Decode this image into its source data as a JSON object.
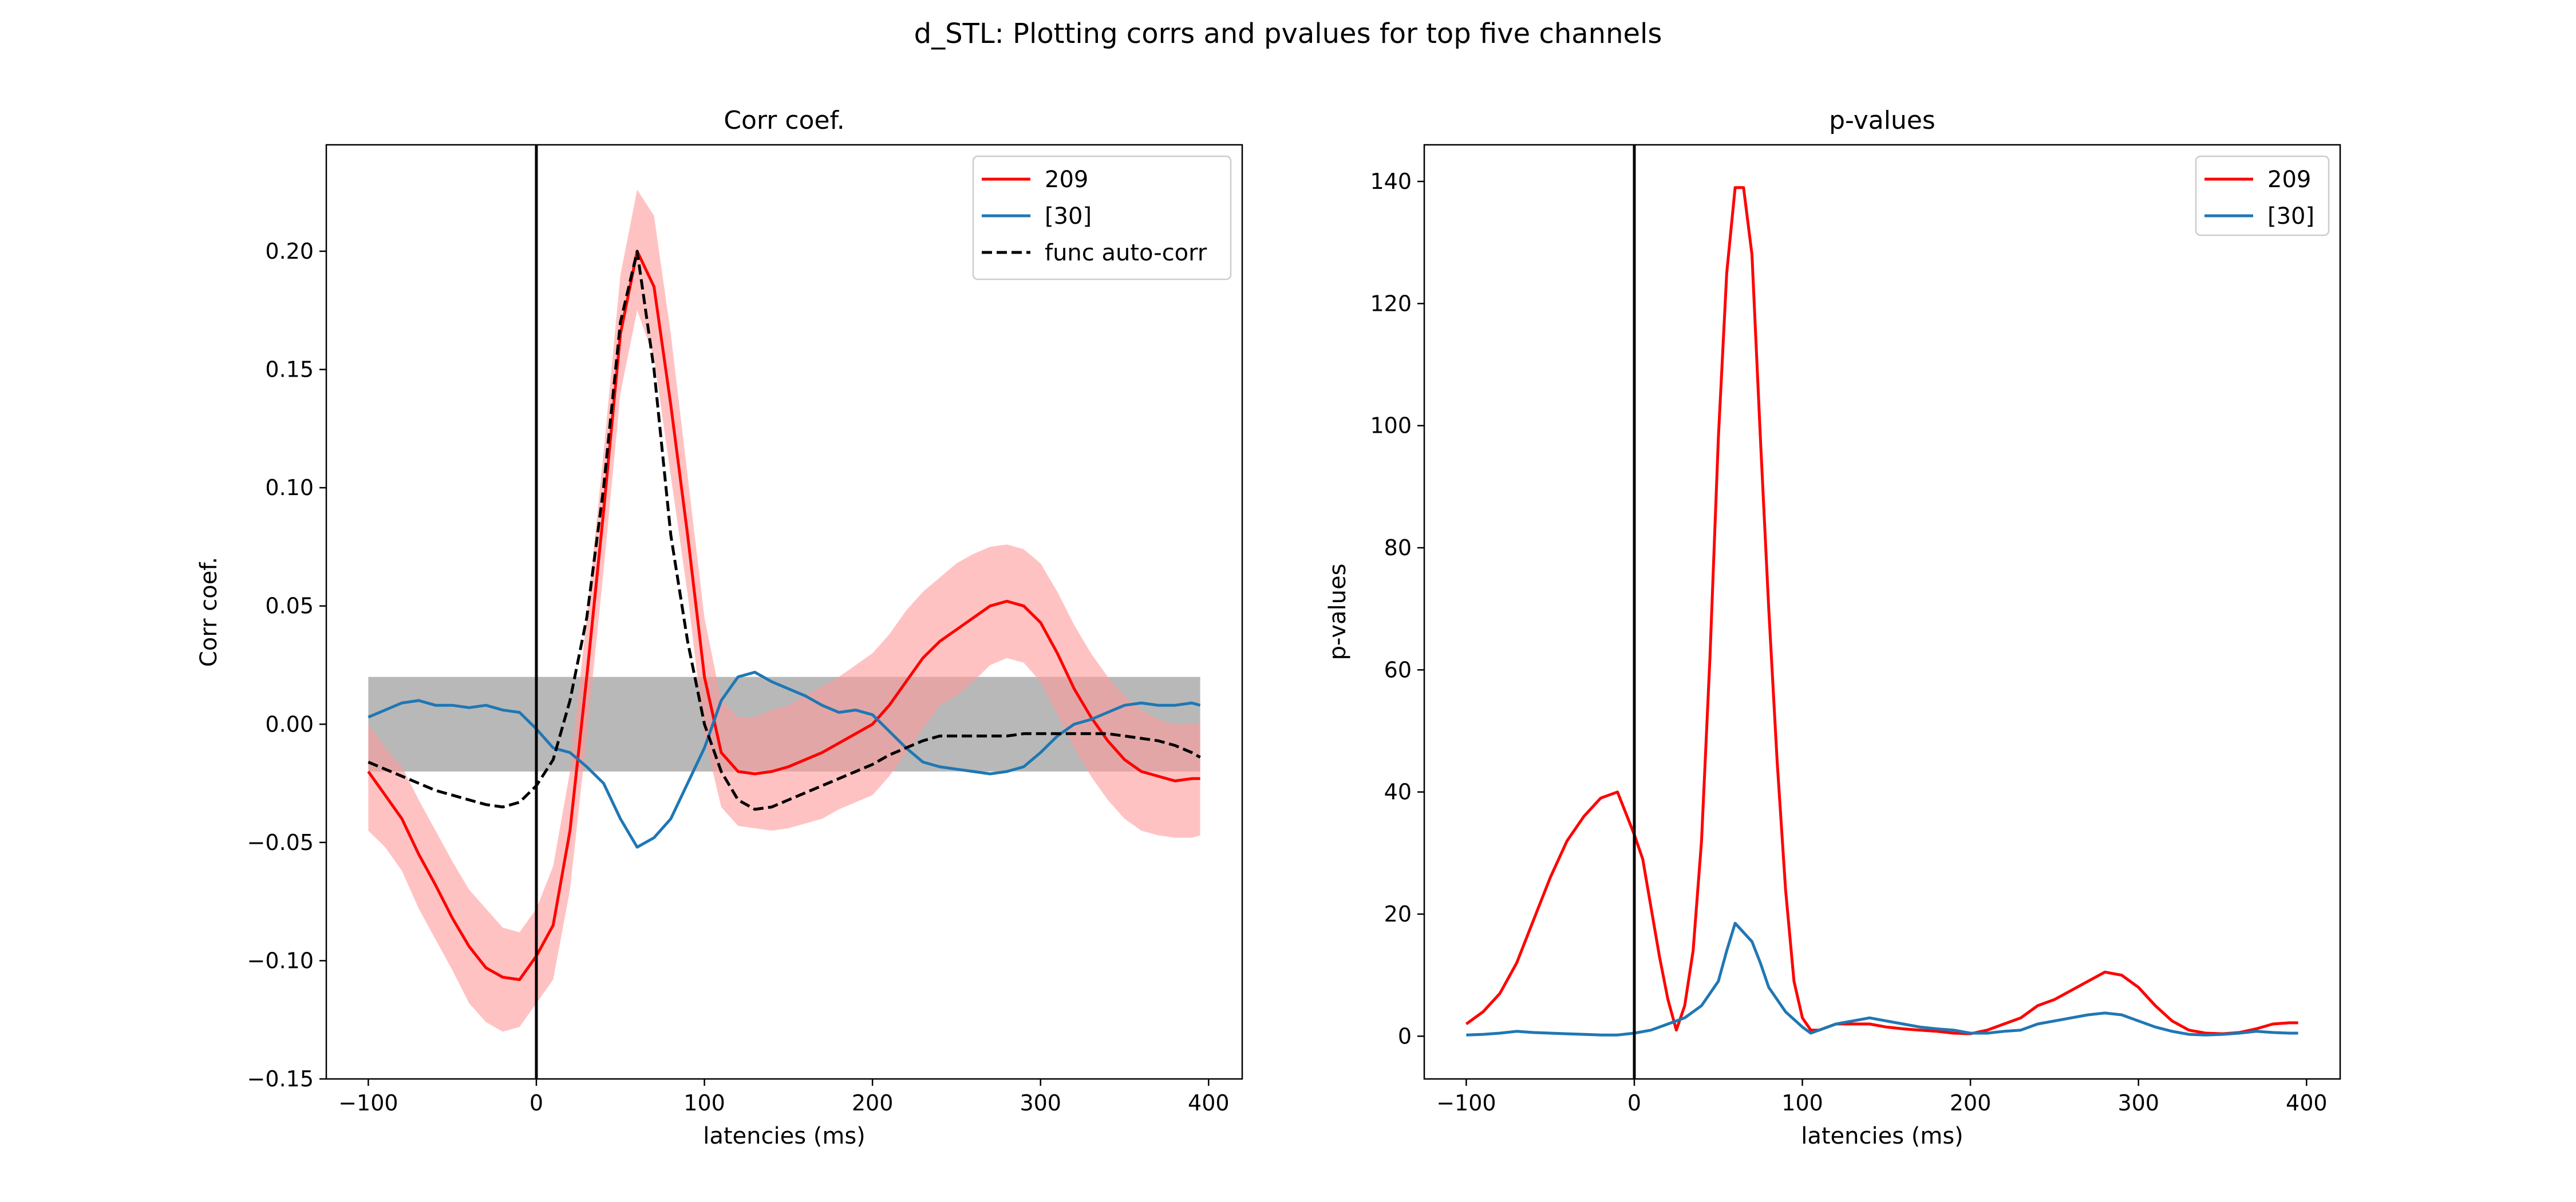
{
  "suptitle": "d_STL: Plotting corrs and pvalues for top five channels",
  "colors": {
    "red": "#ff0000",
    "blue": "#1f77b4",
    "black": "#000000",
    "band_red": "#ff9a9a",
    "band_gray": "#a0a0a0"
  },
  "chart_data": [
    {
      "type": "line",
      "title": "Corr coef.",
      "xlabel": "latencies (ms)",
      "ylabel": "Corr coef.",
      "xlim": [
        -125,
        420
      ],
      "ylim": [
        -0.15,
        0.245
      ],
      "xticks": [
        -100,
        0,
        100,
        200,
        300,
        400
      ],
      "xtick_labels": [
        "−100",
        "0",
        "100",
        "200",
        "300",
        "400"
      ],
      "yticks": [
        -0.15,
        -0.1,
        -0.05,
        0.0,
        0.05,
        0.1,
        0.15,
        0.2
      ],
      "ytick_labels": [
        "−0.15",
        "−0.10",
        "−0.05",
        "0.00",
        "0.05",
        "0.10",
        "0.15",
        "0.20"
      ],
      "vline_x": 0,
      "grid": false,
      "legend_position": "top-right",
      "gray_band": {
        "x": [
          -100,
          395
        ],
        "y": [
          -0.02,
          0.02
        ]
      },
      "series": [
        {
          "name": "209",
          "color": "#ff0000",
          "style": "solid",
          "x": [
            -100,
            -90,
            -80,
            -70,
            -60,
            -50,
            -40,
            -30,
            -20,
            -10,
            0,
            10,
            20,
            30,
            40,
            50,
            60,
            70,
            80,
            90,
            100,
            110,
            120,
            130,
            140,
            150,
            160,
            170,
            180,
            190,
            200,
            210,
            220,
            230,
            240,
            250,
            260,
            270,
            280,
            290,
            300,
            310,
            320,
            330,
            340,
            350,
            360,
            370,
            380,
            390,
            395
          ],
          "y": [
            -0.02,
            -0.03,
            -0.04,
            -0.055,
            -0.068,
            -0.082,
            -0.094,
            -0.103,
            -0.107,
            -0.108,
            -0.098,
            -0.085,
            -0.045,
            0.02,
            0.09,
            0.165,
            0.2,
            0.185,
            0.135,
            0.08,
            0.02,
            -0.012,
            -0.02,
            -0.021,
            -0.02,
            -0.018,
            -0.015,
            -0.012,
            -0.008,
            -0.004,
            0.0,
            0.008,
            0.018,
            0.028,
            0.035,
            0.04,
            0.045,
            0.05,
            0.052,
            0.05,
            0.043,
            0.03,
            0.015,
            0.003,
            -0.007,
            -0.015,
            -0.02,
            -0.022,
            -0.024,
            -0.023,
            -0.023
          ]
        },
        {
          "name": "[30]",
          "color": "#1f77b4",
          "style": "solid",
          "x": [
            -100,
            -90,
            -80,
            -70,
            -60,
            -50,
            -40,
            -30,
            -20,
            -10,
            0,
            10,
            20,
            30,
            40,
            50,
            60,
            70,
            80,
            90,
            100,
            110,
            120,
            130,
            140,
            150,
            160,
            170,
            180,
            190,
            200,
            210,
            220,
            230,
            240,
            250,
            260,
            270,
            280,
            290,
            300,
            310,
            320,
            330,
            340,
            350,
            360,
            370,
            380,
            390,
            395
          ],
          "y": [
            0.003,
            0.006,
            0.009,
            0.01,
            0.008,
            0.008,
            0.007,
            0.008,
            0.006,
            0.005,
            -0.002,
            -0.01,
            -0.012,
            -0.018,
            -0.025,
            -0.04,
            -0.052,
            -0.048,
            -0.04,
            -0.025,
            -0.01,
            0.01,
            0.02,
            0.022,
            0.018,
            0.015,
            0.012,
            0.008,
            0.005,
            0.006,
            0.004,
            -0.003,
            -0.01,
            -0.016,
            -0.018,
            -0.019,
            -0.02,
            -0.021,
            -0.02,
            -0.018,
            -0.012,
            -0.005,
            0.0,
            0.002,
            0.005,
            0.008,
            0.009,
            0.008,
            0.008,
            0.009,
            0.008
          ]
        },
        {
          "name": "func auto-corr",
          "color": "#000000",
          "style": "dashed",
          "x": [
            -100,
            -90,
            -80,
            -70,
            -60,
            -50,
            -40,
            -30,
            -20,
            -10,
            0,
            10,
            20,
            30,
            40,
            50,
            60,
            70,
            80,
            90,
            100,
            110,
            120,
            130,
            140,
            150,
            160,
            170,
            180,
            190,
            200,
            210,
            220,
            230,
            240,
            250,
            260,
            270,
            280,
            290,
            300,
            310,
            320,
            330,
            340,
            350,
            360,
            370,
            380,
            390,
            395
          ],
          "y": [
            -0.016,
            -0.019,
            -0.022,
            -0.025,
            -0.028,
            -0.03,
            -0.032,
            -0.034,
            -0.035,
            -0.033,
            -0.026,
            -0.015,
            0.01,
            0.045,
            0.1,
            0.17,
            0.2,
            0.15,
            0.08,
            0.035,
            0.0,
            -0.02,
            -0.032,
            -0.036,
            -0.035,
            -0.032,
            -0.029,
            -0.026,
            -0.023,
            -0.02,
            -0.017,
            -0.013,
            -0.01,
            -0.007,
            -0.005,
            -0.005,
            -0.005,
            -0.005,
            -0.005,
            -0.004,
            -0.004,
            -0.004,
            -0.004,
            -0.004,
            -0.004,
            -0.005,
            -0.006,
            -0.007,
            -0.009,
            -0.012,
            -0.014
          ]
        }
      ],
      "error_band": {
        "series": "209",
        "x": [
          -100,
          -90,
          -80,
          -70,
          -60,
          -50,
          -40,
          -30,
          -20,
          -10,
          0,
          10,
          20,
          30,
          40,
          50,
          60,
          70,
          80,
          90,
          100,
          110,
          120,
          130,
          140,
          150,
          160,
          170,
          180,
          190,
          200,
          210,
          220,
          230,
          240,
          250,
          260,
          270,
          280,
          290,
          300,
          310,
          320,
          330,
          340,
          350,
          360,
          370,
          380,
          390,
          395
        ],
        "upper": [
          0.0,
          -0.01,
          -0.018,
          -0.032,
          -0.045,
          -0.058,
          -0.07,
          -0.078,
          -0.086,
          -0.088,
          -0.078,
          -0.06,
          -0.02,
          0.045,
          0.115,
          0.19,
          0.226,
          0.215,
          0.165,
          0.105,
          0.045,
          0.01,
          0.003,
          0.003,
          0.006,
          0.008,
          0.012,
          0.016,
          0.02,
          0.025,
          0.03,
          0.038,
          0.048,
          0.056,
          0.062,
          0.068,
          0.072,
          0.075,
          0.076,
          0.074,
          0.068,
          0.056,
          0.042,
          0.03,
          0.02,
          0.012,
          0.006,
          0.002,
          0.0,
          0.0,
          0.0
        ],
        "lower": [
          -0.045,
          -0.052,
          -0.062,
          -0.078,
          -0.091,
          -0.104,
          -0.118,
          -0.126,
          -0.13,
          -0.128,
          -0.118,
          -0.108,
          -0.07,
          -0.005,
          0.065,
          0.14,
          0.175,
          0.155,
          0.105,
          0.055,
          -0.005,
          -0.035,
          -0.043,
          -0.044,
          -0.045,
          -0.044,
          -0.042,
          -0.04,
          -0.036,
          -0.033,
          -0.03,
          -0.022,
          -0.012,
          -0.002,
          0.008,
          0.012,
          0.018,
          0.025,
          0.028,
          0.026,
          0.018,
          0.004,
          -0.01,
          -0.022,
          -0.032,
          -0.04,
          -0.045,
          -0.047,
          -0.048,
          -0.048,
          -0.047
        ]
      }
    },
    {
      "type": "line",
      "title": "p-values",
      "xlabel": "latencies (ms)",
      "ylabel": "p-values",
      "xlim": [
        -125,
        420
      ],
      "ylim": [
        -7,
        146
      ],
      "xticks": [
        -100,
        0,
        100,
        200,
        300,
        400
      ],
      "xtick_labels": [
        "−100",
        "0",
        "100",
        "200",
        "300",
        "400"
      ],
      "yticks": [
        0,
        20,
        40,
        60,
        80,
        100,
        120,
        140
      ],
      "ytick_labels": [
        "0",
        "20",
        "40",
        "60",
        "80",
        "100",
        "120",
        "140"
      ],
      "vline_x": 0,
      "grid": false,
      "legend_position": "top-right",
      "series": [
        {
          "name": "209",
          "color": "#ff0000",
          "style": "solid",
          "x": [
            -100,
            -90,
            -80,
            -70,
            -60,
            -50,
            -40,
            -30,
            -20,
            -10,
            0,
            5,
            10,
            15,
            20,
            25,
            30,
            35,
            40,
            45,
            50,
            55,
            60,
            65,
            70,
            75,
            80,
            85,
            90,
            95,
            100,
            105,
            110,
            120,
            130,
            140,
            150,
            160,
            170,
            180,
            190,
            200,
            210,
            220,
            230,
            240,
            250,
            260,
            270,
            280,
            290,
            300,
            310,
            320,
            330,
            340,
            350,
            360,
            370,
            380,
            390,
            395
          ],
          "y": [
            2,
            4,
            7,
            12,
            19,
            26,
            32,
            36,
            39,
            40,
            33,
            29,
            21,
            13,
            6,
            1,
            5,
            14,
            32,
            62,
            98,
            125,
            139,
            139,
            128,
            98,
            70,
            45,
            24,
            9,
            3,
            1,
            1,
            2,
            2,
            2,
            1.5,
            1.2,
            1,
            0.8,
            0.5,
            0.4,
            1,
            2,
            3,
            5,
            6,
            7.5,
            9,
            10.5,
            10,
            8,
            5,
            2.5,
            1,
            0.5,
            0.4,
            0.6,
            1.2,
            2,
            2.2,
            2.2
          ]
        },
        {
          "name": "[30]",
          "color": "#1f77b4",
          "style": "solid",
          "x": [
            -100,
            -90,
            -80,
            -70,
            -60,
            -50,
            -40,
            -30,
            -20,
            -10,
            0,
            10,
            20,
            30,
            40,
            50,
            55,
            60,
            65,
            70,
            75,
            80,
            90,
            100,
            105,
            110,
            120,
            130,
            140,
            150,
            160,
            170,
            180,
            190,
            200,
            210,
            220,
            230,
            240,
            250,
            260,
            270,
            280,
            290,
            300,
            310,
            320,
            330,
            340,
            350,
            360,
            370,
            380,
            390,
            395
          ],
          "y": [
            0.2,
            0.3,
            0.5,
            0.8,
            0.6,
            0.5,
            0.4,
            0.3,
            0.2,
            0.2,
            0.5,
            1,
            2,
            3,
            5,
            9,
            14,
            18.5,
            17,
            15.5,
            12,
            8,
            4,
            1.5,
            0.5,
            1,
            2,
            2.5,
            3,
            2.5,
            2,
            1.5,
            1.2,
            1,
            0.5,
            0.5,
            0.8,
            1,
            2,
            2.5,
            3,
            3.5,
            3.8,
            3.5,
            2.5,
            1.5,
            0.8,
            0.3,
            0.2,
            0.3,
            0.5,
            0.8,
            0.6,
            0.5,
            0.5
          ]
        }
      ]
    }
  ]
}
